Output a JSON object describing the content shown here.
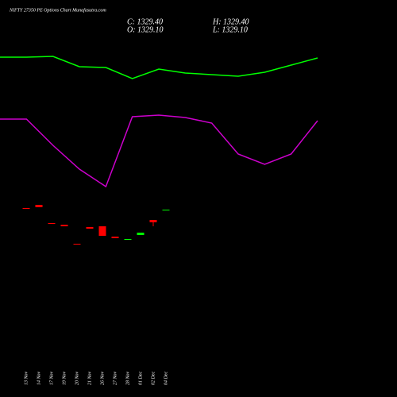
{
  "chart_data": [
    {
      "type": "candlestick",
      "title": "NIFTY 27350 PE Options Chart Munafasutra.com",
      "close_label": "C: 1329.40",
      "high_label": "H: 1329.40",
      "open_label": "O: 1329.10",
      "low_label": "L: 1329.10",
      "categories": [
        "13 Nov",
        "14 Nov",
        "17 Nov",
        "19 Nov",
        "20 Nov",
        "21 Nov",
        "26 Nov",
        "27 Nov",
        "28 Nov",
        "01 Dec",
        "02 Dec",
        "04 Dec"
      ],
      "open": [
        1340,
        1360,
        1245,
        1235,
        1115,
        1220,
        1225,
        1160,
        1140,
        1170,
        1265,
        1329.1
      ],
      "high": [
        1340,
        1360,
        1245,
        1235,
        1115,
        1220,
        1225,
        1160,
        1145,
        1185,
        1265,
        1329.4
      ],
      "low": [
        1335,
        1345,
        1240,
        1225,
        1110,
        1210,
        1165,
        1150,
        1140,
        1170,
        1225,
        1329.1
      ],
      "close": [
        1335,
        1345,
        1240,
        1225,
        1110,
        1210,
        1165,
        1150,
        1145,
        1185,
        1250,
        1329.4
      ],
      "up_color": "#00ff00",
      "down_color": "#ff0000",
      "ylim": [
        1000,
        1500
      ]
    },
    {
      "type": "line",
      "series": [
        {
          "color": "#00ff00",
          "values": [
            428,
            428,
            429,
            416,
            415,
            401,
            413,
            408,
            406,
            404,
            409,
            418,
            427
          ]
        },
        {
          "color": "#cc00cc",
          "values": [
            350,
            350,
            317,
            287,
            265,
            353,
            355,
            352,
            345,
            306,
            293,
            306,
            348
          ]
        }
      ],
      "ylim": [
        0,
        500
      ]
    }
  ]
}
